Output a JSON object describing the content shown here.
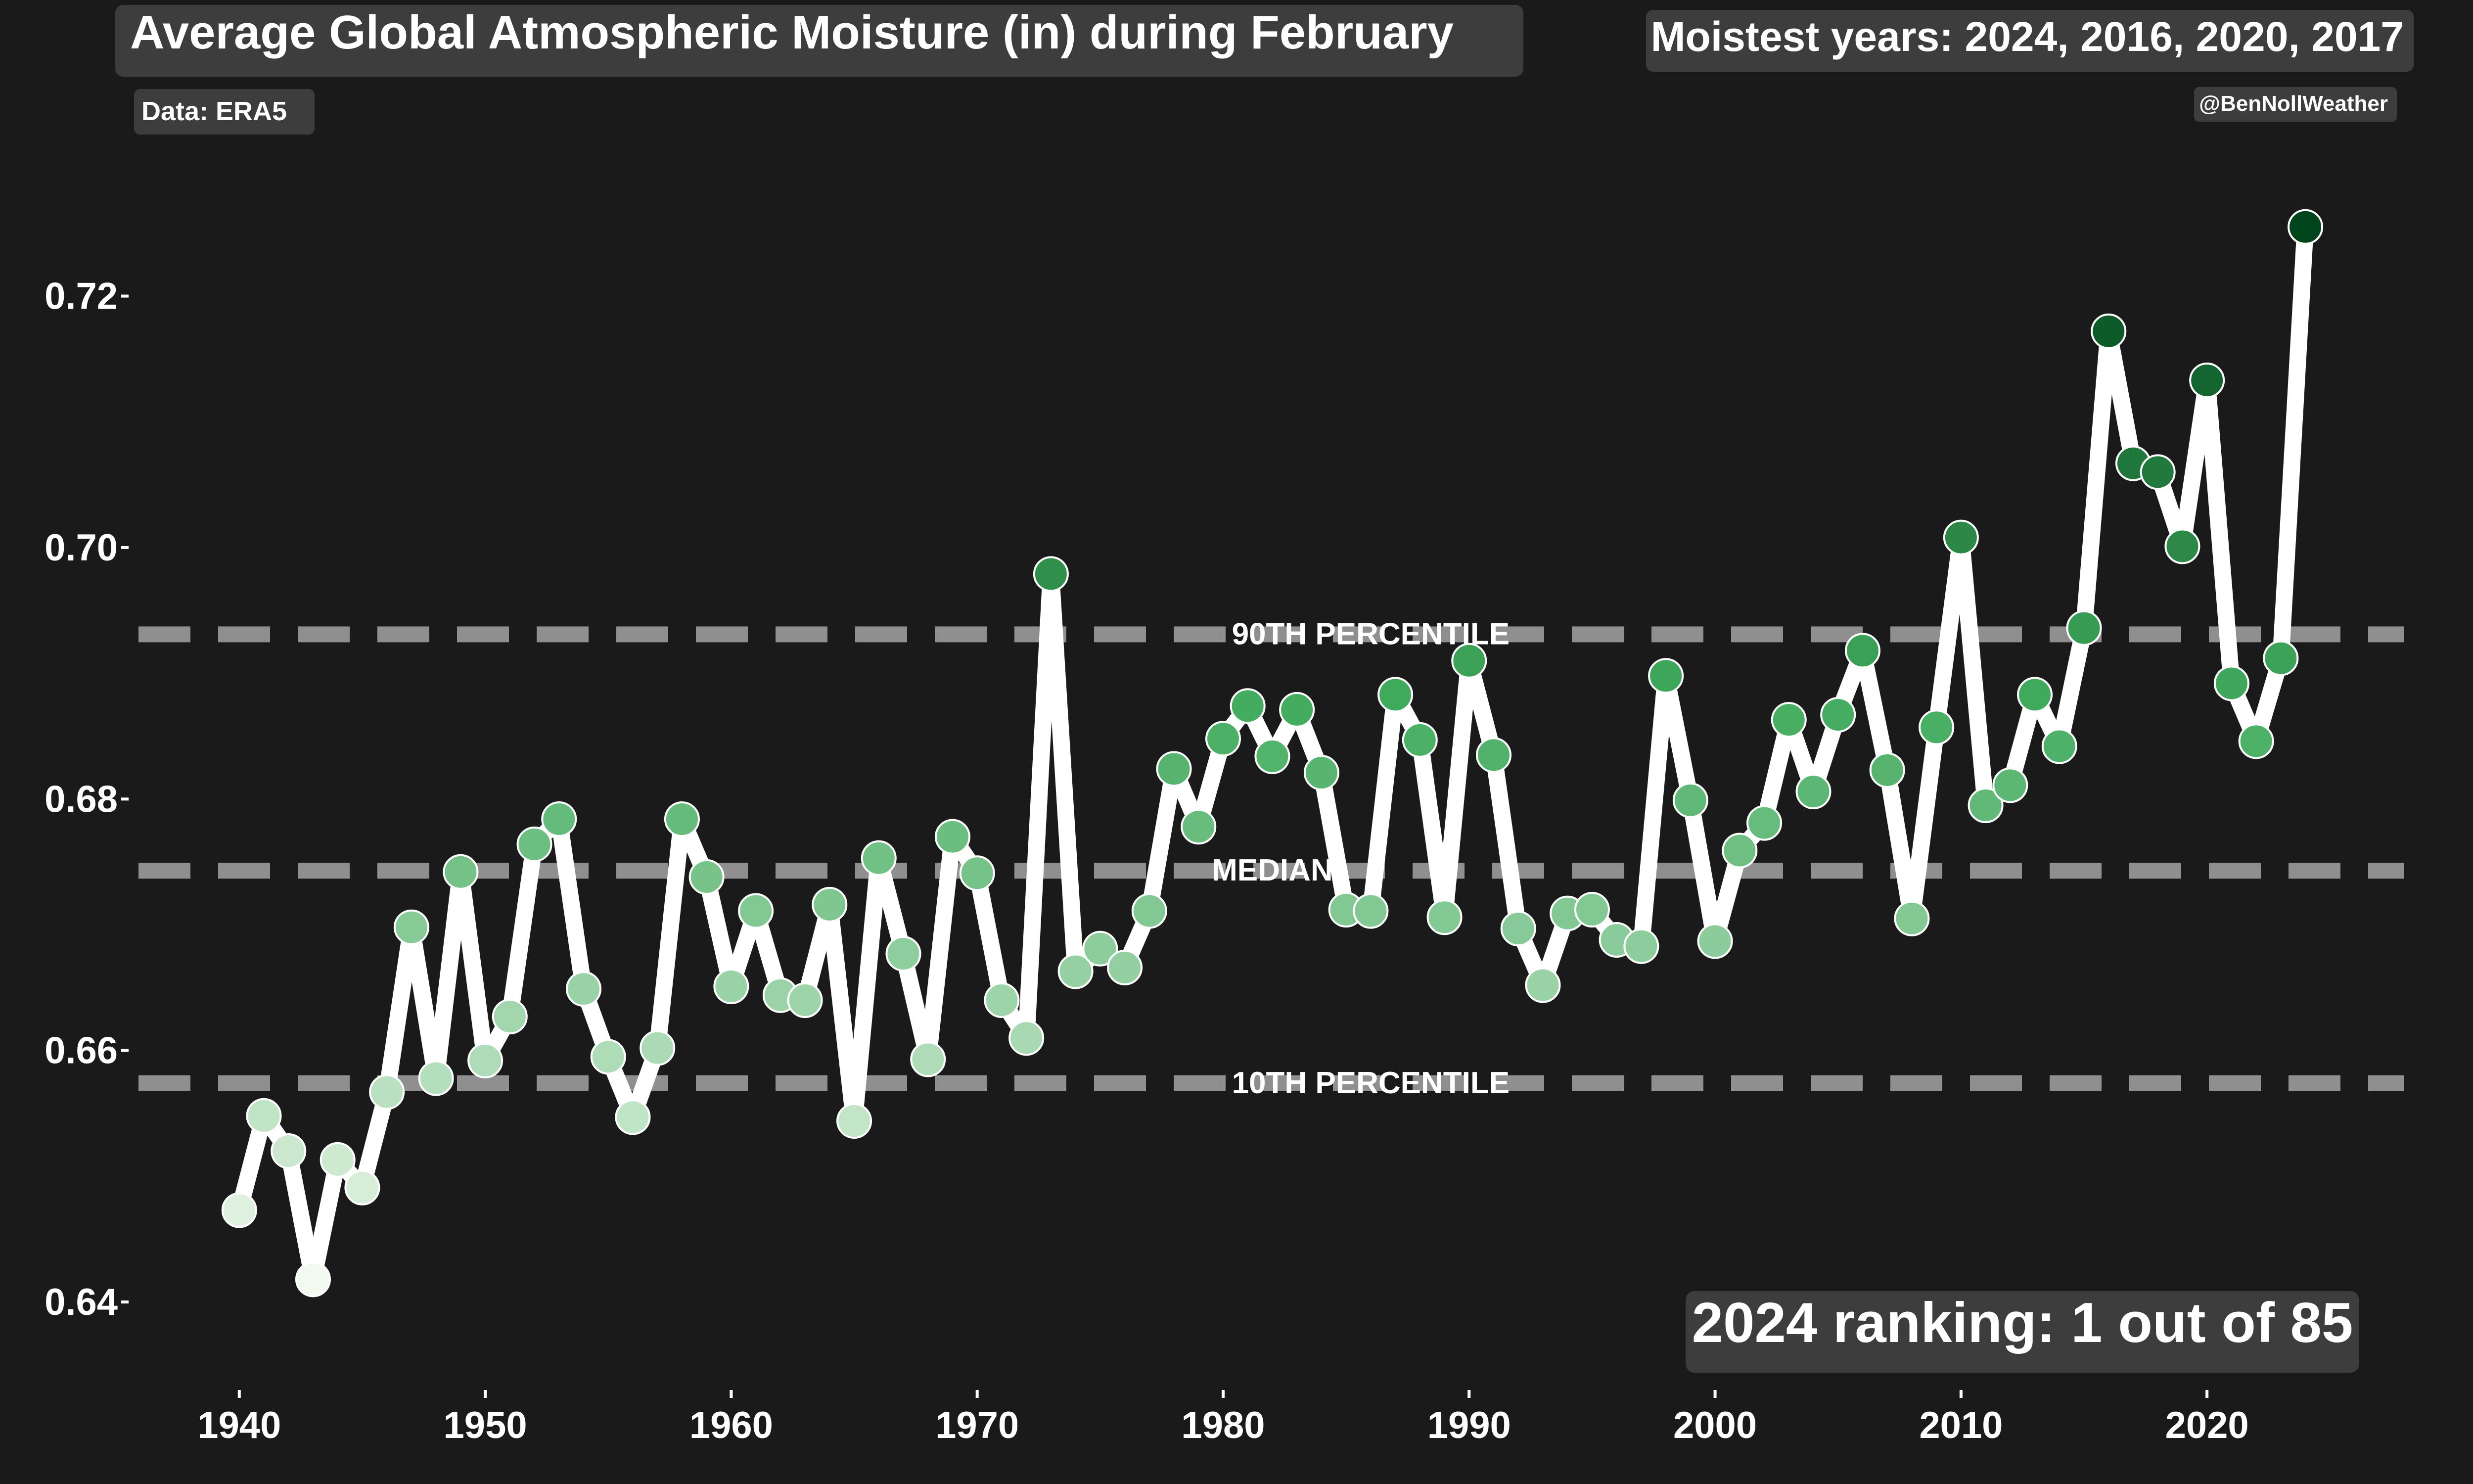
{
  "chart_data": {
    "type": "line",
    "title": "Average Global Atmospheric Moisture (in) during February",
    "subtitle": "Moistest years: 2024, 2016, 2020, 2017",
    "source": "Data: ERA5",
    "credit": "@BenNollWeather",
    "ranking": "2024 ranking: 1 out of 85",
    "xlabel": "",
    "ylabel": "",
    "xlim": [
      1935.5,
      2028
    ],
    "ylim": [
      0.633,
      0.7345
    ],
    "x_ticks": [
      {
        "value": 1940,
        "label": "1940"
      },
      {
        "value": 1950,
        "label": "1950"
      },
      {
        "value": 1960,
        "label": "1960"
      },
      {
        "value": 1970,
        "label": "1970"
      },
      {
        "value": 1980,
        "label": "1980"
      },
      {
        "value": 1990,
        "label": "1990"
      },
      {
        "value": 2000,
        "label": "2000"
      },
      {
        "value": 2010,
        "label": "2010"
      },
      {
        "value": 2020,
        "label": "2020"
      }
    ],
    "y_ticks": [
      {
        "value": 0.64,
        "label": "0.64"
      },
      {
        "value": 0.66,
        "label": "0.66"
      },
      {
        "value": 0.68,
        "label": "0.68"
      },
      {
        "value": 0.7,
        "label": "0.70"
      },
      {
        "value": 0.72,
        "label": "0.72"
      }
    ],
    "reference_lines": [
      {
        "value": 0.6931,
        "label": "90TH PERCENTILE",
        "label_x": 1986
      },
      {
        "value": 0.6743,
        "label": "MEDIAN",
        "label_x": 1982
      },
      {
        "value": 0.6574,
        "label": "10TH PERCENTILE",
        "label_x": 1986
      }
    ],
    "colors": {
      "background": "#1a1a1a",
      "line": "#ffffff",
      "reference": "#8f8f8f",
      "box": "#3d3d3d",
      "color_low": "#f2faef",
      "color_mid": "#41ab5d",
      "color_high": "#00441b"
    },
    "grid": false,
    "series": [
      {
        "x": [
          1940,
          1941,
          1942,
          1943,
          1944,
          1945,
          1946,
          1947,
          1948,
          1949,
          1950,
          1951,
          1952,
          1953,
          1954,
          1955,
          1956,
          1957,
          1958,
          1959,
          1960,
          1961,
          1962,
          1963,
          1964,
          1965,
          1966,
          1967,
          1968,
          1969,
          1970,
          1971,
          1972,
          1973,
          1974,
          1975,
          1976,
          1977,
          1978,
          1979,
          1980,
          1981,
          1982,
          1983,
          1984,
          1985,
          1986,
          1987,
          1988,
          1989,
          1990,
          1991,
          1992,
          1993,
          1994,
          1995,
          1996,
          1997,
          1998,
          1999,
          2000,
          2001,
          2002,
          2003,
          2004,
          2005,
          2006,
          2007,
          2008,
          2009,
          2010,
          2011,
          2012,
          2013,
          2014,
          2015,
          2016,
          2017,
          2018,
          2019,
          2020,
          2021,
          2022,
          2023,
          2024
        ],
        "values": [
          0.6473,
          0.6548,
          0.652,
          0.6418,
          0.6513,
          0.6491,
          0.6567,
          0.6698,
          0.6578,
          0.6742,
          0.6592,
          0.6627,
          0.6764,
          0.6784,
          0.6649,
          0.6595,
          0.6547,
          0.6602,
          0.6784,
          0.6738,
          0.6651,
          0.6711,
          0.6644,
          0.664,
          0.6716,
          0.6544,
          0.6753,
          0.6677,
          0.6593,
          0.677,
          0.6741,
          0.664,
          0.661,
          0.6979,
          0.6663,
          0.6681,
          0.6666,
          0.6711,
          0.6824,
          0.6778,
          0.6848,
          0.6874,
          0.6834,
          0.6871,
          0.6821,
          0.6712,
          0.6711,
          0.6883,
          0.6847,
          0.6706,
          0.691,
          0.6835,
          0.6697,
          0.6652,
          0.6709,
          0.6712,
          0.6688,
          0.6683,
          0.6898,
          0.6799,
          0.6687,
          0.6759,
          0.6781,
          0.6863,
          0.6806,
          0.6867,
          0.6918,
          0.6823,
          0.6705,
          0.6857,
          0.7008,
          0.6795,
          0.6811,
          0.6883,
          0.6842,
          0.6936,
          0.7172,
          0.7067,
          0.706,
          0.7001,
          0.7133,
          0.6892,
          0.6846,
          0.6912,
          0.7255
        ]
      }
    ]
  }
}
